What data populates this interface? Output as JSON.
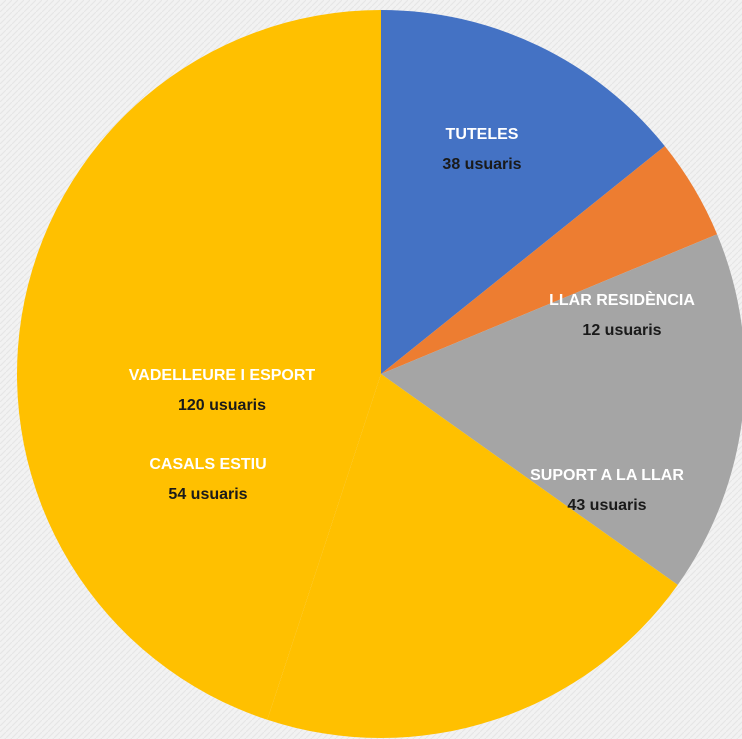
{
  "chart_data": {
    "type": "pie",
    "categories": [
      "TUTELES",
      "LLAR RESIDÈNCIA",
      "SUPORT A LA LLAR",
      "CASALS ESTIU",
      "VADELLEURE I ESPORT"
    ],
    "values": [
      38,
      12,
      43,
      54,
      120
    ],
    "value_labels": [
      "38 usuaris",
      "12 usuaris",
      "43 usuaris",
      "54 usuaris",
      "120 usuaris"
    ],
    "colors": [
      "#4472c4",
      "#ed7d31",
      "#a5a5a5",
      "#ffc000",
      "#ffc000"
    ]
  }
}
